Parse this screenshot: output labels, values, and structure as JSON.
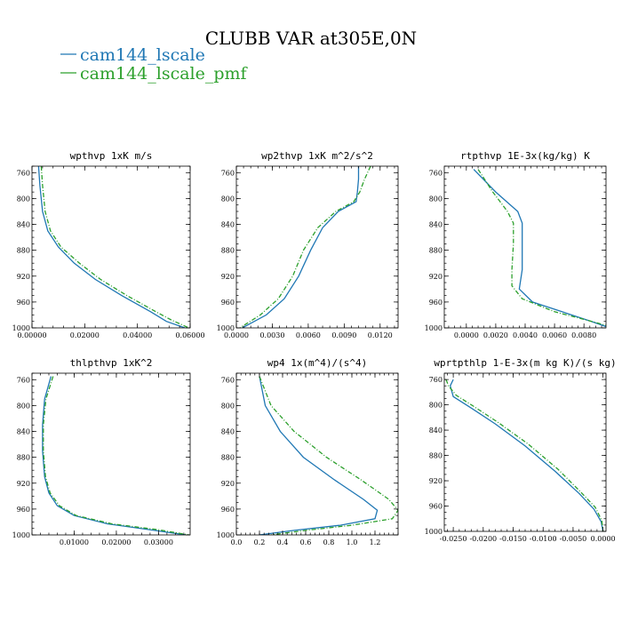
{
  "figure": {
    "title": "CLUBB VAR at305E,0N",
    "legend": [
      {
        "label": "cam144_lscale",
        "color": "#1f77b4",
        "dash": "solid"
      },
      {
        "label": "cam144_lscale_pmf",
        "color": "#2ca02c",
        "dash": "dashdot"
      }
    ]
  },
  "chart_data": [
    {
      "type": "line",
      "title": "wpthvp  1xK m/s",
      "xlim": [
        0,
        0.06
      ],
      "ylim": [
        1000,
        750
      ],
      "xticks": [
        0,
        0.02,
        0.04,
        0.06
      ],
      "xtick_labels": [
        "0.00000",
        "0.02000",
        "0.04000",
        "0.06000"
      ],
      "yticks": [
        760,
        800,
        840,
        880,
        920,
        960,
        1000
      ],
      "series": [
        {
          "name": "cam144_lscale",
          "points": [
            [
              0.0025,
              750
            ],
            [
              0.003,
              780
            ],
            [
              0.004,
              820
            ],
            [
              0.006,
              850
            ],
            [
              0.01,
              875
            ],
            [
              0.016,
              900
            ],
            [
              0.024,
              925
            ],
            [
              0.034,
              950
            ],
            [
              0.045,
              975
            ],
            [
              0.051,
              990
            ],
            [
              0.058,
              1000
            ]
          ]
        },
        {
          "name": "cam144_lscale_pmf",
          "points": [
            [
              0.0035,
              750
            ],
            [
              0.004,
              780
            ],
            [
              0.005,
              820
            ],
            [
              0.007,
              850
            ],
            [
              0.011,
              875
            ],
            [
              0.018,
              900
            ],
            [
              0.026,
              925
            ],
            [
              0.036,
              950
            ],
            [
              0.047,
              975
            ],
            [
              0.053,
              988
            ],
            [
              0.0595,
              1000
            ]
          ]
        }
      ]
    },
    {
      "type": "line",
      "title": "wp2thvp  1xK m^2/s^2",
      "xlim": [
        0,
        0.0135
      ],
      "ylim": [
        1000,
        750
      ],
      "xticks": [
        0,
        0.003,
        0.006,
        0.009,
        0.012
      ],
      "xtick_labels": [
        "0.0000",
        "0.0030",
        "0.0060",
        "0.0090",
        "0.0120"
      ],
      "yticks": [
        760,
        800,
        840,
        880,
        920,
        960,
        1000
      ],
      "series": [
        {
          "name": "cam144_lscale",
          "points": [
            [
              0.0102,
              750
            ],
            [
              0.0102,
              770
            ],
            [
              0.0101,
              790
            ],
            [
              0.01,
              805
            ],
            [
              0.0085,
              820
            ],
            [
              0.0072,
              845
            ],
            [
              0.0062,
              880
            ],
            [
              0.0052,
              920
            ],
            [
              0.004,
              955
            ],
            [
              0.0025,
              980
            ],
            [
              0.0005,
              1000
            ]
          ]
        },
        {
          "name": "cam144_lscale_pmf",
          "points": [
            [
              0.0112,
              750
            ],
            [
              0.0107,
              770
            ],
            [
              0.0103,
              790
            ],
            [
              0.0098,
              805
            ],
            [
              0.0083,
              820
            ],
            [
              0.0068,
              845
            ],
            [
              0.0056,
              880
            ],
            [
              0.0047,
              920
            ],
            [
              0.0035,
              955
            ],
            [
              0.002,
              980
            ],
            [
              0.0003,
              1000
            ]
          ]
        }
      ]
    },
    {
      "type": "line",
      "title": "rtpthvp  1E-3x(kg/kg) K",
      "xlim": [
        -0.0015,
        0.0095
      ],
      "ylim": [
        1000,
        750
      ],
      "xticks": [
        0,
        0.002,
        0.004,
        0.006,
        0.008
      ],
      "xtick_labels": [
        "0.0000",
        "0.0020",
        "0.0040",
        "0.0060",
        "0.0080"
      ],
      "yticks": [
        760,
        800,
        840,
        880,
        920,
        960,
        1000
      ],
      "series": [
        {
          "name": "cam144_lscale",
          "points": [
            [
              0.0005,
              755
            ],
            [
              0.002,
              790
            ],
            [
              0.0035,
              820
            ],
            [
              0.0038,
              838
            ],
            [
              0.0038,
              870
            ],
            [
              0.0038,
              910
            ],
            [
              0.0036,
              940
            ],
            [
              0.0045,
              960
            ],
            [
              0.0065,
              975
            ],
            [
              0.0085,
              990
            ],
            [
              0.0095,
              998
            ]
          ]
        },
        {
          "name": "cam144_lscale_pmf",
          "points": [
            [
              0.0008,
              755
            ],
            [
              0.0018,
              790
            ],
            [
              0.0028,
              820
            ],
            [
              0.0032,
              838
            ],
            [
              0.0032,
              870
            ],
            [
              0.0031,
              910
            ],
            [
              0.0031,
              935
            ],
            [
              0.0038,
              955
            ],
            [
              0.006,
              975
            ],
            [
              0.0082,
              988
            ],
            [
              0.0095,
              996
            ]
          ]
        }
      ]
    },
    {
      "type": "line",
      "title": "thlpthvp  1xK^2",
      "xlim": [
        0,
        0.0375
      ],
      "ylim": [
        1000,
        750
      ],
      "xticks": [
        0.01,
        0.02,
        0.03
      ],
      "xtick_labels": [
        "0.01000",
        "0.02000",
        "0.03000"
      ],
      "yticks": [
        760,
        800,
        840,
        880,
        920,
        960,
        1000
      ],
      "series": [
        {
          "name": "cam144_lscale",
          "points": [
            [
              0.0045,
              755
            ],
            [
              0.003,
              790
            ],
            [
              0.0025,
              830
            ],
            [
              0.0025,
              870
            ],
            [
              0.003,
              910
            ],
            [
              0.004,
              935
            ],
            [
              0.006,
              955
            ],
            [
              0.01,
              970
            ],
            [
              0.018,
              983
            ],
            [
              0.029,
              993
            ],
            [
              0.0365,
              1000
            ]
          ]
        },
        {
          "name": "cam144_lscale_pmf",
          "points": [
            [
              0.005,
              755
            ],
            [
              0.0033,
              790
            ],
            [
              0.0027,
              830
            ],
            [
              0.0027,
              870
            ],
            [
              0.0032,
              910
            ],
            [
              0.0043,
              935
            ],
            [
              0.0065,
              955
            ],
            [
              0.0105,
              970
            ],
            [
              0.019,
              983
            ],
            [
              0.03,
              992
            ],
            [
              0.0372,
              1000
            ]
          ]
        }
      ]
    },
    {
      "type": "line",
      "title": "wp4  1x(m^4)/(s^4)",
      "xlim": [
        0,
        1.4
      ],
      "ylim": [
        1000,
        750
      ],
      "xticks": [
        0,
        0.2,
        0.4,
        0.6,
        0.8,
        1,
        1.2
      ],
      "xtick_labels": [
        "0.0",
        "0.2",
        "0.4",
        "0.6",
        "0.8",
        "1.0",
        "1.2"
      ],
      "yticks": [
        760,
        800,
        840,
        880,
        920,
        960,
        1000
      ],
      "series": [
        {
          "name": "cam144_lscale",
          "points": [
            [
              0.2,
              755
            ],
            [
              0.25,
              800
            ],
            [
              0.38,
              840
            ],
            [
              0.58,
              880
            ],
            [
              0.85,
              915
            ],
            [
              1.1,
              945
            ],
            [
              1.22,
              962
            ],
            [
              1.2,
              975
            ],
            [
              0.9,
              985
            ],
            [
              0.5,
              993
            ],
            [
              0.2,
              1000
            ]
          ]
        },
        {
          "name": "cam144_lscale_pmf",
          "points": [
            [
              0.2,
              755
            ],
            [
              0.3,
              800
            ],
            [
              0.5,
              840
            ],
            [
              0.78,
              880
            ],
            [
              1.08,
              915
            ],
            [
              1.32,
              945
            ],
            [
              1.4,
              962
            ],
            [
              1.35,
              975
            ],
            [
              1.0,
              985
            ],
            [
              0.6,
              993
            ],
            [
              0.3,
              1000
            ]
          ]
        }
      ]
    },
    {
      "type": "line",
      "title": "wprtpthlp  1-E-3x(m kg K)/(s kg)",
      "xlim": [
        -0.0265,
        0.0005
      ],
      "ylim": [
        1000,
        750
      ],
      "xticks": [
        -0.025,
        -0.02,
        -0.015,
        -0.01,
        -0.005,
        0
      ],
      "xtick_labels": [
        "-0.0250",
        "-0.0200",
        "-0.0150",
        "-0.0100",
        "-0.0050",
        "0.0000"
      ],
      "yticks": [
        760,
        800,
        840,
        880,
        920,
        960,
        1000
      ],
      "series": [
        {
          "name": "cam144_lscale",
          "points": [
            [
              -0.025,
              760
            ],
            [
              -0.0255,
              770
            ],
            [
              -0.025,
              787
            ],
            [
              -0.022,
              805
            ],
            [
              -0.018,
              830
            ],
            [
              -0.013,
              865
            ],
            [
              -0.008,
              905
            ],
            [
              -0.004,
              940
            ],
            [
              -0.0015,
              965
            ],
            [
              -0.0003,
              985
            ],
            [
              0,
              1000
            ]
          ]
        },
        {
          "name": "cam144_lscale_pmf",
          "points": [
            [
              -0.0262,
              760
            ],
            [
              -0.0258,
              770
            ],
            [
              -0.0245,
              785
            ],
            [
              -0.0215,
              803
            ],
            [
              -0.0175,
              828
            ],
            [
              -0.0125,
              862
            ],
            [
              -0.0075,
              902
            ],
            [
              -0.0037,
              938
            ],
            [
              -0.0013,
              962
            ],
            [
              -0.0002,
              983
            ],
            [
              0,
              1000
            ]
          ]
        }
      ]
    }
  ]
}
